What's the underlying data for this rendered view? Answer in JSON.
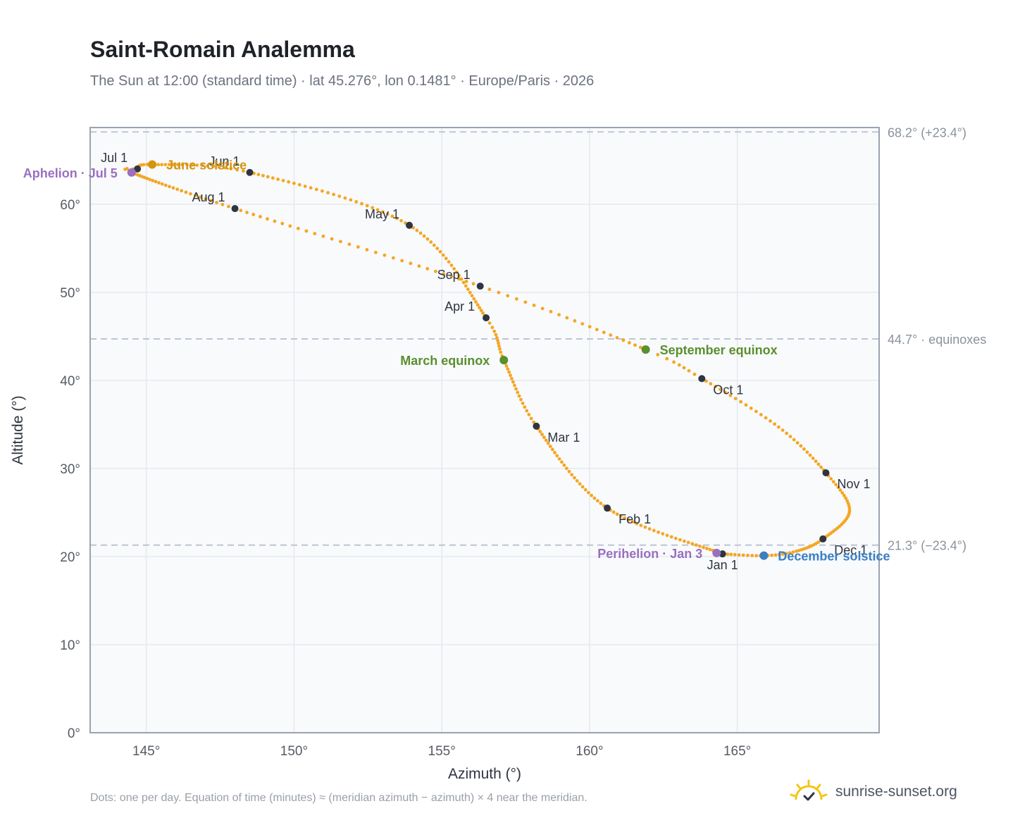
{
  "title": "Saint-Romain Analemma",
  "subtitle": "The Sun at 12:00 (standard time) · lat 45.276°, lon 0.1481° · Europe/Paris · 2026",
  "footnote": "Dots: one per day. Equation of time (minutes) ≈ (meridian azimuth − azimuth) × 4 near the meridian.",
  "brand": {
    "name": "sunrise-sunset.org",
    "icon": "sun-logo-icon"
  },
  "colors": {
    "curve": "#f5a623",
    "month": "#2f3440",
    "solstice_june": "#d4940f",
    "solstice_dec": "#3a7fc4",
    "equinox": "#5a8f2e",
    "apsis": "#9a6fbf",
    "ref_line": "#b8c2cf",
    "grid": "#e6e9ee",
    "plot_bg": "#f8fafc",
    "frame": "#9aa4b0"
  },
  "chart_data": {
    "type": "scatter",
    "title": "Saint-Romain Analemma",
    "xlabel": "Azimuth (°)",
    "ylabel": "Altitude (°)",
    "xlim": [
      143.1,
      169.8
    ],
    "ylim": [
      0,
      68.7
    ],
    "x_ticks": [
      145,
      150,
      155,
      160,
      165
    ],
    "x_tick_labels": [
      "145°",
      "150°",
      "155°",
      "160°",
      "165°"
    ],
    "y_ticks": [
      0,
      10,
      20,
      30,
      40,
      50,
      60
    ],
    "y_tick_labels": [
      "0°",
      "10°",
      "20°",
      "30°",
      "40°",
      "50°",
      "60°"
    ],
    "grid": true,
    "series": [
      {
        "marker": "dot",
        "description": "daily sun position",
        "anchors": [
          {
            "day": 0,
            "x": 164.5,
            "y": 20.3
          },
          {
            "day": 31,
            "x": 160.6,
            "y": 25.5
          },
          {
            "day": 59,
            "x": 158.2,
            "y": 34.8
          },
          {
            "day": 78,
            "x": 157.1,
            "y": 42.3
          },
          {
            "day": 90,
            "x": 156.5,
            "y": 47.1
          },
          {
            "day": 120,
            "x": 153.9,
            "y": 57.6
          },
          {
            "day": 151,
            "x": 148.5,
            "y": 63.6
          },
          {
            "day": 171,
            "x": 145.2,
            "y": 64.5
          },
          {
            "day": 181,
            "x": 144.7,
            "y": 64.0
          },
          {
            "day": 185,
            "x": 144.5,
            "y": 63.6
          },
          {
            "day": 212,
            "x": 148.0,
            "y": 59.5
          },
          {
            "day": 243,
            "x": 156.3,
            "y": 50.7
          },
          {
            "day": 265,
            "x": 161.9,
            "y": 43.5
          },
          {
            "day": 273,
            "x": 163.8,
            "y": 40.2
          },
          {
            "day": 289,
            "x": 166.4,
            "y": 34.7
          },
          {
            "day": 304,
            "x": 168.0,
            "y": 29.5
          },
          {
            "day": 318,
            "x": 168.8,
            "y": 25.2
          },
          {
            "day": 334,
            "x": 167.9,
            "y": 22.0
          },
          {
            "day": 345,
            "x": 167.0,
            "y": 20.6
          },
          {
            "day": 354,
            "x": 165.9,
            "y": 20.1
          },
          {
            "day": 365,
            "x": 164.5,
            "y": 20.3
          }
        ]
      }
    ],
    "month_markers": [
      {
        "label": "Jan 1",
        "x": 164.5,
        "y": 20.3,
        "pos": "below"
      },
      {
        "label": "Feb 1",
        "x": 160.6,
        "y": 25.5,
        "pos": "below-right"
      },
      {
        "label": "Mar 1",
        "x": 158.2,
        "y": 34.8,
        "pos": "below-right"
      },
      {
        "label": "Apr 1",
        "x": 156.5,
        "y": 47.1,
        "pos": "left"
      },
      {
        "label": "May 1",
        "x": 153.9,
        "y": 57.6,
        "pos": "above-left"
      },
      {
        "label": "Jun 1",
        "x": 148.5,
        "y": 63.6,
        "pos": "above-left"
      },
      {
        "label": "Jul 1",
        "x": 144.7,
        "y": 64.0,
        "pos": "above-left"
      },
      {
        "label": "Aug 1",
        "x": 148.0,
        "y": 59.5,
        "pos": "above-left"
      },
      {
        "label": "Sep 1",
        "x": 156.3,
        "y": 50.7,
        "pos": "above-left"
      },
      {
        "label": "Oct 1",
        "x": 163.8,
        "y": 40.2,
        "pos": "below-right"
      },
      {
        "label": "Nov 1",
        "x": 168.0,
        "y": 29.5,
        "pos": "below-right"
      },
      {
        "label": "Dec 1",
        "x": 167.9,
        "y": 22.0,
        "pos": "below-right"
      }
    ],
    "events": [
      {
        "label": "June solstice",
        "x": 145.2,
        "y": 64.5,
        "color": "#d4940f",
        "pos": "right"
      },
      {
        "label": "Aphelion · Jul 5",
        "x": 144.5,
        "y": 63.6,
        "color": "#9a6fbf",
        "pos": "left"
      },
      {
        "label": "March equinox",
        "x": 157.1,
        "y": 42.3,
        "color": "#5a8f2e",
        "pos": "left"
      },
      {
        "label": "September equinox",
        "x": 161.9,
        "y": 43.5,
        "color": "#5a8f2e",
        "pos": "right"
      },
      {
        "label": "Perihelion · Jan 3",
        "x": 164.3,
        "y": 20.4,
        "color": "#9a6fbf",
        "pos": "left"
      },
      {
        "label": "December solstice",
        "x": 165.9,
        "y": 20.1,
        "color": "#3a7fc4",
        "pos": "right"
      }
    ],
    "reference_lines": [
      {
        "y": 68.2,
        "label": "68.2° (+23.4°)"
      },
      {
        "y": 44.7,
        "label": "44.7° · equinoxes"
      },
      {
        "y": 21.3,
        "label": "21.3° (−23.4°)"
      }
    ]
  }
}
